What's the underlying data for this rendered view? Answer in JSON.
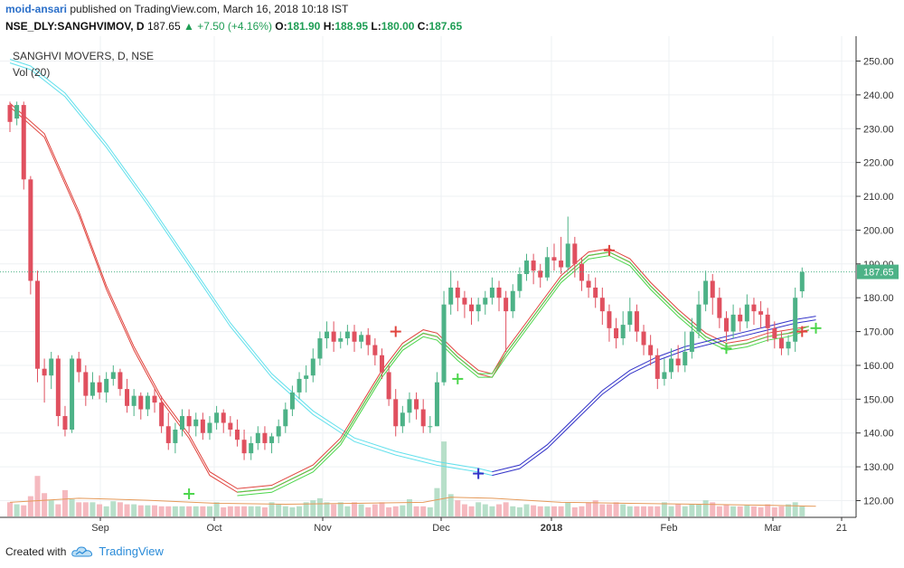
{
  "header": {
    "user": "moid-ansari",
    "published": "published on TradingView.com, March 16, 2018 10:18 IST",
    "symbol": "NSE_DLY:SANGHVIMOV, D",
    "price": "187.65",
    "change": "+7.50 (+4.16%)",
    "o_label": "O:",
    "o_val": "181.90",
    "h_label": "H:",
    "h_val": "188.95",
    "l_label": "L:",
    "l_val": "180.00",
    "c_label": "C:",
    "c_val": "187.65"
  },
  "legend": {
    "title": "SANGHVI MOVERS, D, NSE",
    "vol": "Vol (20)"
  },
  "footer": {
    "created_with": "Created with",
    "brand": "TradingView"
  },
  "colors": {
    "up": "#4db287",
    "down": "#e0505f",
    "vol_up": "#b7dfc9",
    "vol_down": "#f5b9bf",
    "ma_red": "#e0443e",
    "ma_green": "#4bd64b",
    "ma_cyan": "#62e0ec",
    "ma_blue": "#3232c8",
    "vol_ma": "#e59a5a",
    "last_label": "#4db287"
  },
  "chart_data": {
    "type": "candlestick",
    "yaxis_ticks": [
      "250.00",
      "240.00",
      "230.00",
      "220.00",
      "210.00",
      "200.00",
      "190.00",
      "180.00",
      "170.00",
      "160.00",
      "150.00",
      "140.00",
      "130.00",
      "120.00"
    ],
    "ylim": [
      115,
      253
    ],
    "xaxis_labels": [
      "Sep",
      "Oct",
      "Nov",
      "Dec",
      "2018",
      "Feb",
      "Mar",
      "21"
    ],
    "last_price": "187.65",
    "candles": [
      [
        237,
        232,
        238,
        229
      ],
      [
        233,
        237,
        238,
        231
      ],
      [
        237,
        215,
        238,
        212
      ],
      [
        215,
        185,
        216,
        181
      ],
      [
        185,
        159,
        188,
        155
      ],
      [
        159,
        157,
        162,
        149
      ],
      [
        157,
        162,
        164,
        153
      ],
      [
        162,
        145,
        163,
        142
      ],
      [
        145,
        141,
        148,
        139
      ],
      [
        141,
        162,
        163,
        140
      ],
      [
        162,
        158,
        164,
        155
      ],
      [
        158,
        151,
        160,
        148
      ],
      [
        151,
        155,
        158,
        150
      ],
      [
        155,
        152,
        157,
        150
      ],
      [
        152,
        156,
        158,
        149
      ],
      [
        156,
        158,
        160,
        154
      ],
      [
        158,
        153,
        159,
        151
      ],
      [
        153,
        148,
        156,
        146
      ],
      [
        148,
        151,
        153,
        145
      ],
      [
        151,
        147,
        152,
        144
      ],
      [
        147,
        151,
        152,
        145
      ],
      [
        151,
        149,
        153,
        146
      ],
      [
        149,
        142,
        151,
        140
      ],
      [
        142,
        137,
        146,
        135
      ],
      [
        137,
        141,
        143,
        134
      ],
      [
        141,
        145,
        147,
        139
      ],
      [
        145,
        142,
        147,
        140
      ],
      [
        142,
        144,
        146,
        139
      ],
      [
        144,
        140,
        146,
        138
      ],
      [
        140,
        143,
        145,
        138
      ],
      [
        143,
        146,
        148,
        141
      ],
      [
        146,
        143,
        147,
        140
      ],
      [
        143,
        141,
        145,
        139
      ],
      [
        141,
        138,
        144,
        136
      ],
      [
        138,
        134,
        141,
        132
      ],
      [
        134,
        137,
        139,
        132
      ],
      [
        137,
        140,
        142,
        135
      ],
      [
        140,
        137,
        142,
        135
      ],
      [
        137,
        139,
        140,
        134
      ],
      [
        139,
        142,
        144,
        137
      ],
      [
        142,
        147,
        149,
        140
      ],
      [
        147,
        152,
        154,
        145
      ],
      [
        152,
        156,
        158,
        150
      ],
      [
        156,
        157,
        160,
        152
      ],
      [
        157,
        162,
        165,
        155
      ],
      [
        162,
        168,
        170,
        160
      ],
      [
        168,
        170,
        173,
        165
      ],
      [
        170,
        167,
        173,
        164
      ],
      [
        167,
        168,
        170,
        165
      ],
      [
        168,
        170,
        172,
        166
      ],
      [
        170,
        167,
        172,
        164
      ],
      [
        167,
        169,
        170,
        165
      ],
      [
        169,
        166,
        171,
        163
      ],
      [
        166,
        163,
        168,
        160
      ],
      [
        163,
        158,
        165,
        156
      ],
      [
        158,
        150,
        160,
        148
      ],
      [
        150,
        142,
        153,
        139
      ],
      [
        142,
        146,
        148,
        140
      ],
      [
        146,
        150,
        152,
        143
      ],
      [
        150,
        147,
        152,
        144
      ],
      [
        147,
        142,
        150,
        140
      ],
      [
        142,
        142,
        145,
        140
      ],
      [
        142,
        155,
        158,
        142
      ],
      [
        155,
        178,
        182,
        154
      ],
      [
        178,
        183,
        188,
        175
      ],
      [
        183,
        180,
        185,
        176
      ],
      [
        180,
        178,
        182,
        174
      ],
      [
        178,
        176,
        180,
        172
      ],
      [
        176,
        178,
        180,
        173
      ],
      [
        178,
        180,
        182,
        175
      ],
      [
        180,
        183,
        186,
        178
      ],
      [
        183,
        180,
        185,
        176
      ],
      [
        180,
        176,
        182,
        164
      ],
      [
        176,
        182,
        184,
        174
      ],
      [
        182,
        187,
        189,
        180
      ],
      [
        187,
        191,
        193,
        185
      ],
      [
        191,
        188,
        193,
        184
      ],
      [
        188,
        186,
        190,
        183
      ],
      [
        186,
        192,
        195,
        185
      ],
      [
        192,
        191,
        196,
        188
      ],
      [
        191,
        189,
        198,
        187
      ],
      [
        189,
        196,
        204,
        188
      ],
      [
        196,
        190,
        198,
        186
      ],
      [
        190,
        185,
        192,
        182
      ],
      [
        185,
        183,
        187,
        180
      ],
      [
        183,
        180,
        186,
        177
      ],
      [
        180,
        176,
        183,
        172
      ],
      [
        176,
        171,
        178,
        167
      ],
      [
        171,
        168,
        174,
        165
      ],
      [
        168,
        172,
        176,
        166
      ],
      [
        172,
        176,
        180,
        170
      ],
      [
        176,
        170,
        178,
        167
      ],
      [
        170,
        166,
        172,
        163
      ],
      [
        166,
        163,
        169,
        160
      ],
      [
        163,
        156,
        165,
        153
      ],
      [
        156,
        158,
        162,
        154
      ],
      [
        158,
        162,
        165,
        156
      ],
      [
        162,
        160,
        166,
        158
      ],
      [
        160,
        164,
        170,
        158
      ],
      [
        164,
        170,
        174,
        162
      ],
      [
        170,
        178,
        182,
        168
      ],
      [
        178,
        185,
        188,
        176
      ],
      [
        185,
        180,
        187,
        175
      ],
      [
        180,
        174,
        183,
        171
      ],
      [
        174,
        170,
        176,
        167
      ],
      [
        170,
        175,
        178,
        168
      ],
      [
        175,
        173,
        177,
        170
      ],
      [
        173,
        178,
        181,
        171
      ],
      [
        178,
        176,
        180,
        172
      ],
      [
        176,
        175,
        179,
        171
      ],
      [
        175,
        171,
        177,
        167
      ],
      [
        171,
        168,
        173,
        165
      ],
      [
        168,
        165,
        170,
        163
      ],
      [
        165,
        167,
        169,
        163
      ],
      [
        167,
        180,
        183,
        164
      ],
      [
        181.9,
        187.65,
        188.95,
        180
      ]
    ],
    "volume": [
      14,
      12,
      11,
      20,
      40,
      23,
      16,
      12,
      26,
      17,
      14,
      14,
      14,
      12,
      10,
      15,
      14,
      12,
      12,
      11,
      11,
      11,
      10,
      10,
      10,
      10,
      10,
      10,
      10,
      10,
      14,
      9,
      10,
      10,
      10,
      10,
      10,
      9,
      14,
      12,
      10,
      9,
      10,
      14,
      16,
      18,
      14,
      12,
      14,
      10,
      14,
      12,
      9,
      12,
      14,
      9,
      10,
      11,
      17,
      10,
      10,
      9,
      28,
      74,
      22,
      16,
      12,
      10,
      14,
      12,
      10,
      12,
      14,
      10,
      9,
      12,
      11,
      10,
      10,
      10,
      10,
      14,
      9,
      10,
      14,
      16,
      12,
      12,
      14,
      12,
      10,
      10,
      10,
      10,
      10,
      14,
      10,
      12,
      10,
      12,
      12,
      16,
      14,
      10,
      12,
      10,
      10,
      11,
      10,
      9,
      12,
      9,
      10,
      12,
      14,
      10
    ],
    "ma_red": [
      {
        "i": 0,
        "v": 237
      },
      {
        "i": 5,
        "v": 228
      },
      {
        "i": 10,
        "v": 205
      },
      {
        "i": 14,
        "v": 183
      },
      {
        "i": 18,
        "v": 165
      },
      {
        "i": 22,
        "v": 150
      },
      {
        "i": 26,
        "v": 139
      },
      {
        "i": 29,
        "v": 128
      },
      {
        "i": 33,
        "v": 123
      },
      {
        "i": 38,
        "v": 124
      },
      {
        "i": 44,
        "v": 130
      },
      {
        "i": 48,
        "v": 138
      },
      {
        "i": 51,
        "v": 148
      },
      {
        "i": 54,
        "v": 158
      },
      {
        "i": 57,
        "v": 166
      },
      {
        "i": 60,
        "v": 170
      },
      {
        "i": 62,
        "v": 169
      },
      {
        "i": 65,
        "v": 163
      },
      {
        "i": 68,
        "v": 158
      },
      {
        "i": 70,
        "v": 157
      },
      {
        "i": 72,
        "v": 164
      },
      {
        "i": 76,
        "v": 175
      },
      {
        "i": 80,
        "v": 186
      },
      {
        "i": 84,
        "v": 193
      },
      {
        "i": 87,
        "v": 194
      },
      {
        "i": 90,
        "v": 191
      },
      {
        "i": 93,
        "v": 184
      },
      {
        "i": 97,
        "v": 176
      },
      {
        "i": 101,
        "v": 169
      },
      {
        "i": 104,
        "v": 166
      },
      {
        "i": 107,
        "v": 167
      },
      {
        "i": 110,
        "v": 169
      },
      {
        "i": 113,
        "v": 170
      },
      {
        "i": 116,
        "v": 171
      }
    ],
    "ma_green": [
      {
        "i": 33,
        "v": 122
      },
      {
        "i": 38,
        "v": 123
      },
      {
        "i": 44,
        "v": 129
      },
      {
        "i": 48,
        "v": 137
      },
      {
        "i": 51,
        "v": 147
      },
      {
        "i": 54,
        "v": 157
      },
      {
        "i": 57,
        "v": 165
      },
      {
        "i": 60,
        "v": 169
      },
      {
        "i": 62,
        "v": 168
      },
      {
        "i": 65,
        "v": 162
      },
      {
        "i": 68,
        "v": 157
      },
      {
        "i": 70,
        "v": 157
      },
      {
        "i": 72,
        "v": 163
      },
      {
        "i": 76,
        "v": 174
      },
      {
        "i": 80,
        "v": 185
      },
      {
        "i": 84,
        "v": 192
      },
      {
        "i": 87,
        "v": 193
      },
      {
        "i": 90,
        "v": 190
      },
      {
        "i": 93,
        "v": 183
      },
      {
        "i": 97,
        "v": 175
      },
      {
        "i": 101,
        "v": 168
      },
      {
        "i": 104,
        "v": 165
      },
      {
        "i": 107,
        "v": 166
      },
      {
        "i": 110,
        "v": 168
      },
      {
        "i": 113,
        "v": 169
      },
      {
        "i": 116,
        "v": 171
      }
    ],
    "ma_cyan": [
      {
        "i": 0,
        "v": 250
      },
      {
        "i": 3,
        "v": 248
      },
      {
        "i": 8,
        "v": 240
      },
      {
        "i": 14,
        "v": 225
      },
      {
        "i": 20,
        "v": 208
      },
      {
        "i": 26,
        "v": 190
      },
      {
        "i": 32,
        "v": 172
      },
      {
        "i": 38,
        "v": 157
      },
      {
        "i": 44,
        "v": 146
      },
      {
        "i": 50,
        "v": 138
      },
      {
        "i": 56,
        "v": 134
      },
      {
        "i": 62,
        "v": 131
      },
      {
        "i": 68,
        "v": 129
      },
      {
        "i": 70,
        "v": 128
      }
    ],
    "ma_blue": [
      {
        "i": 70,
        "v": 128
      },
      {
        "i": 74,
        "v": 130
      },
      {
        "i": 78,
        "v": 136
      },
      {
        "i": 82,
        "v": 144
      },
      {
        "i": 86,
        "v": 152
      },
      {
        "i": 90,
        "v": 158
      },
      {
        "i": 94,
        "v": 162
      },
      {
        "i": 98,
        "v": 165
      },
      {
        "i": 102,
        "v": 167
      },
      {
        "i": 106,
        "v": 169
      },
      {
        "i": 110,
        "v": 171
      },
      {
        "i": 114,
        "v": 173
      },
      {
        "i": 117,
        "v": 174
      }
    ],
    "vol_ma": [
      {
        "i": 0,
        "v": 14
      },
      {
        "i": 10,
        "v": 18
      },
      {
        "i": 20,
        "v": 16
      },
      {
        "i": 30,
        "v": 13
      },
      {
        "i": 40,
        "v": 12
      },
      {
        "i": 50,
        "v": 13
      },
      {
        "i": 60,
        "v": 14
      },
      {
        "i": 64,
        "v": 19
      },
      {
        "i": 70,
        "v": 18
      },
      {
        "i": 80,
        "v": 14
      },
      {
        "i": 90,
        "v": 13
      },
      {
        "i": 100,
        "v": 12
      },
      {
        "i": 110,
        "v": 11
      },
      {
        "i": 117,
        "v": 10
      }
    ],
    "cross_markers": [
      {
        "i": 26,
        "v": 122,
        "color": "green"
      },
      {
        "i": 56,
        "v": 170,
        "color": "red"
      },
      {
        "i": 65,
        "v": 156,
        "color": "green"
      },
      {
        "i": 68,
        "v": 128,
        "color": "blue"
      },
      {
        "i": 87,
        "v": 194,
        "color": "red"
      },
      {
        "i": 104,
        "v": 165,
        "color": "green"
      },
      {
        "i": 115,
        "v": 170,
        "color": "red"
      },
      {
        "i": 117,
        "v": 171,
        "color": "green"
      }
    ]
  }
}
